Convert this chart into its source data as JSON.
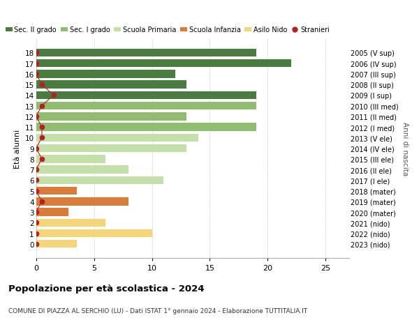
{
  "ages": [
    18,
    17,
    16,
    15,
    14,
    13,
    12,
    11,
    10,
    9,
    8,
    7,
    6,
    5,
    4,
    3,
    2,
    1,
    0
  ],
  "years": [
    "2005 (V sup)",
    "2006 (IV sup)",
    "2007 (III sup)",
    "2008 (II sup)",
    "2009 (I sup)",
    "2010 (III med)",
    "2011 (II med)",
    "2012 (I med)",
    "2013 (V ele)",
    "2014 (IV ele)",
    "2015 (III ele)",
    "2016 (II ele)",
    "2017 (I ele)",
    "2018 (mater)",
    "2019 (mater)",
    "2020 (mater)",
    "2021 (nido)",
    "2022 (nido)",
    "2023 (nido)"
  ],
  "bar_values": [
    19,
    22,
    12,
    13,
    19,
    19,
    13,
    19,
    14,
    13,
    6,
    8,
    11,
    3.5,
    8,
    2.8,
    6,
    10,
    3.5
  ],
  "bar_colors": [
    "#4a7c40",
    "#4a7c40",
    "#4a7c40",
    "#4a7c40",
    "#4a7c40",
    "#8fbc6e",
    "#8fbc6e",
    "#8fbc6e",
    "#c5dfa8",
    "#c5dfa8",
    "#c5dfa8",
    "#c5dfa8",
    "#c5dfa8",
    "#d97b3a",
    "#d97b3a",
    "#d97b3a",
    "#f5d57a",
    "#f5d57a",
    "#f5d57a"
  ],
  "stranieri_x": [
    0,
    0,
    0,
    0.5,
    1.5,
    0.5,
    0,
    0.5,
    0.5,
    0,
    0.5,
    0,
    0,
    0,
    0.5,
    0,
    0,
    0,
    0
  ],
  "title": "Popolazione per età scolastica - 2024",
  "subtitle": "COMUNE DI PIAZZA AL SERCHIO (LU) - Dati ISTAT 1° gennaio 2024 - Elaborazione TUTTITALIA.IT",
  "ylabel": "Età alunni",
  "ylabel2": "Anni di nascita",
  "xlim": [
    0,
    27
  ],
  "xticks": [
    0,
    5,
    10,
    15,
    20,
    25
  ],
  "legend_labels": [
    "Sec. II grado",
    "Sec. I grado",
    "Scuola Primaria",
    "Scuola Infanzia",
    "Asilo Nido",
    "Stranieri"
  ],
  "legend_colors": [
    "#4a7c40",
    "#8fbc6e",
    "#c5dfa8",
    "#d97b3a",
    "#f5d57a",
    "#b22222"
  ],
  "bar_height": 0.75,
  "bg_color": "#ffffff",
  "grid_color": "#cccccc",
  "stranieri_color": "#b22222"
}
